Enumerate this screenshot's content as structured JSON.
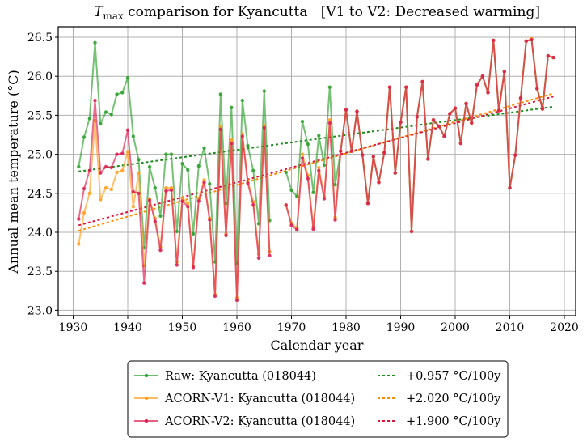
{
  "chart_data": {
    "type": "line",
    "title": "T_max comparison for Kyancutta   [V1 to V2: Decreased warming]",
    "title_parts": {
      "var": "T",
      "sub": "max",
      "rest": " comparison for Kyancutta   [V1 to V2: Decreased warming]"
    },
    "xlabel": "Calendar year",
    "ylabel": "Annual mean temperature (°C)",
    "xlim": [
      1927,
      2022
    ],
    "ylim": [
      22.97,
      26.65
    ],
    "xticks": [
      1930,
      1940,
      1950,
      1960,
      1970,
      1980,
      1990,
      2000,
      2010,
      2020
    ],
    "yticks": [
      23.0,
      23.5,
      24.0,
      24.5,
      25.0,
      25.5,
      26.0,
      26.5
    ],
    "ytick_labels": [
      "23.0",
      "23.5",
      "24.0",
      "24.5",
      "25.0",
      "25.5",
      "26.0",
      "26.5"
    ],
    "grid": true,
    "legend_position": "below-center",
    "series": [
      {
        "name": "Raw: Kyancutta (018044)",
        "color": "#2ca02c",
        "points": [
          [
            1931,
            24.84
          ],
          [
            1932,
            25.22
          ],
          [
            1933,
            25.46
          ],
          [
            1934,
            26.43
          ],
          [
            1935,
            25.39
          ],
          [
            1936,
            25.54
          ],
          [
            1937,
            25.51
          ],
          [
            1938,
            25.77
          ],
          [
            1939,
            25.79
          ],
          [
            1940,
            25.98
          ],
          [
            1941,
            25.23
          ],
          [
            1942,
            24.93
          ],
          [
            1943,
            23.8
          ],
          [
            1944,
            24.84
          ],
          [
            1945,
            24.57
          ],
          [
            1946,
            24.21
          ],
          [
            1947,
            25.0
          ],
          [
            1948,
            25.0
          ],
          [
            1949,
            24.01
          ],
          [
            1950,
            24.88
          ],
          [
            1951,
            24.8
          ],
          [
            1952,
            23.98
          ],
          [
            1953,
            24.85
          ],
          [
            1954,
            25.08
          ],
          [
            1955,
            24.62
          ],
          [
            1956,
            23.62
          ],
          [
            1957,
            25.77
          ],
          [
            1958,
            24.37
          ],
          [
            1959,
            25.6
          ],
          [
            1960,
            23.6
          ],
          [
            1961,
            25.69
          ],
          [
            1962,
            25.11
          ],
          [
            1963,
            24.79
          ],
          [
            1964,
            24.11
          ],
          [
            1965,
            25.81
          ],
          [
            1966,
            24.15
          ],
          null,
          [
            1969,
            24.77
          ],
          [
            1970,
            24.54
          ],
          [
            1971,
            24.46
          ],
          [
            1972,
            25.42
          ],
          [
            1973,
            25.13
          ],
          [
            1974,
            24.51
          ],
          [
            1975,
            25.24
          ],
          [
            1976,
            24.86
          ],
          [
            1977,
            25.86
          ],
          [
            1978,
            24.61
          ],
          [
            1979,
            25.04
          ],
          [
            1980,
            25.57
          ],
          [
            1981,
            25.04
          ],
          [
            1982,
            25.55
          ],
          [
            1983,
            24.99
          ],
          [
            1984,
            24.37
          ],
          [
            1985,
            24.97
          ],
          [
            1986,
            24.64
          ],
          [
            1987,
            25.02
          ],
          [
            1988,
            25.86
          ],
          [
            1989,
            24.76
          ],
          [
            1990,
            25.41
          ],
          [
            1991,
            25.86
          ],
          [
            1992,
            24.01
          ],
          [
            1993,
            25.48
          ],
          [
            1994,
            25.93
          ],
          [
            1995,
            24.94
          ],
          [
            1996,
            25.44
          ],
          [
            1997,
            25.36
          ],
          [
            1998,
            25.23
          ],
          [
            1999,
            25.52
          ],
          [
            2000,
            25.59
          ],
          [
            2001,
            25.14
          ],
          [
            2002,
            25.65
          ],
          [
            2003,
            25.4
          ],
          [
            2004,
            25.89
          ],
          [
            2005,
            26.0
          ],
          [
            2006,
            25.79
          ],
          [
            2007,
            26.46
          ],
          [
            2008,
            25.56
          ],
          [
            2009,
            26.06
          ],
          [
            2010,
            24.57
          ],
          [
            2011,
            24.99
          ],
          [
            2012,
            25.72
          ],
          [
            2013,
            26.45
          ],
          [
            2014,
            26.47
          ],
          [
            2015,
            25.84
          ],
          [
            2016,
            25.6
          ],
          [
            2017,
            26.26
          ],
          [
            2018,
            26.24
          ]
        ]
      },
      {
        "name": "ACORN-V1: Kyancutta (018044)",
        "color": "#ff9d1f",
        "points": [
          [
            1931,
            23.85
          ],
          [
            1932,
            24.25
          ],
          [
            1933,
            24.5
          ],
          [
            1934,
            25.43
          ],
          [
            1935,
            24.42
          ],
          [
            1936,
            24.57
          ],
          [
            1937,
            24.55
          ],
          [
            1938,
            24.77
          ],
          [
            1939,
            24.79
          ],
          [
            1940,
            25.03
          ],
          [
            1941,
            24.33
          ],
          [
            1942,
            24.76
          ],
          [
            1943,
            23.57
          ],
          [
            1944,
            24.43
          ],
          [
            1945,
            24.18
          ],
          [
            1946,
            23.81
          ],
          [
            1947,
            24.57
          ],
          [
            1948,
            24.57
          ],
          [
            1949,
            23.62
          ],
          [
            1950,
            24.44
          ],
          [
            1951,
            24.37
          ],
          [
            1952,
            23.57
          ],
          [
            1953,
            24.43
          ],
          [
            1954,
            24.67
          ],
          [
            1955,
            24.18
          ],
          [
            1956,
            23.2
          ],
          [
            1957,
            25.36
          ],
          [
            1958,
            23.98
          ],
          [
            1959,
            25.18
          ],
          [
            1960,
            23.16
          ],
          [
            1961,
            25.26
          ],
          [
            1962,
            24.66
          ],
          [
            1963,
            24.39
          ],
          [
            1964,
            23.72
          ],
          [
            1965,
            25.37
          ],
          [
            1966,
            23.75
          ],
          null,
          [
            1969,
            24.35
          ],
          [
            1970,
            24.12
          ],
          [
            1971,
            24.05
          ],
          [
            1972,
            25.0
          ],
          [
            1973,
            24.73
          ],
          [
            1974,
            24.07
          ],
          [
            1975,
            24.83
          ],
          [
            1976,
            24.46
          ],
          [
            1977,
            25.44
          ],
          [
            1978,
            24.19
          ],
          [
            1979,
            25.04
          ],
          [
            1980,
            25.57
          ],
          [
            1981,
            25.04
          ],
          [
            1982,
            25.55
          ],
          [
            1983,
            24.99
          ],
          [
            1984,
            24.37
          ],
          [
            1985,
            24.97
          ],
          [
            1986,
            24.64
          ],
          [
            1987,
            25.02
          ],
          [
            1988,
            25.86
          ],
          [
            1989,
            24.76
          ],
          [
            1990,
            25.41
          ],
          [
            1991,
            25.86
          ],
          [
            1992,
            24.01
          ],
          [
            1993,
            25.48
          ],
          [
            1994,
            25.93
          ],
          [
            1995,
            24.94
          ],
          [
            1996,
            25.44
          ],
          [
            1997,
            25.36
          ],
          [
            1998,
            25.23
          ],
          [
            1999,
            25.52
          ],
          [
            2000,
            25.59
          ],
          [
            2001,
            25.14
          ],
          [
            2002,
            25.65
          ],
          [
            2003,
            25.4
          ],
          [
            2004,
            25.89
          ],
          [
            2005,
            26.0
          ],
          [
            2006,
            25.79
          ],
          [
            2007,
            26.46
          ],
          [
            2008,
            25.56
          ],
          [
            2009,
            26.06
          ],
          [
            2010,
            24.57
          ],
          [
            2011,
            24.99
          ],
          [
            2012,
            25.72
          ],
          [
            2013,
            26.45
          ],
          [
            2014,
            26.48
          ],
          [
            2015,
            25.84
          ],
          [
            2016,
            25.58
          ],
          [
            2017,
            26.26
          ],
          [
            2018,
            26.24
          ]
        ]
      },
      {
        "name": "ACORN-V2: Kyancutta (018044)",
        "color": "#dc1f50",
        "points": [
          [
            1931,
            24.17
          ],
          [
            1932,
            24.56
          ],
          [
            1933,
            24.79
          ],
          [
            1934,
            25.69
          ],
          [
            1935,
            24.76
          ],
          [
            1936,
            24.84
          ],
          [
            1937,
            24.83
          ],
          [
            1938,
            25.0
          ],
          [
            1939,
            25.01
          ],
          [
            1940,
            25.31
          ],
          [
            1941,
            24.52
          ],
          [
            1942,
            24.5
          ],
          [
            1943,
            23.35
          ],
          [
            1944,
            24.41
          ],
          [
            1945,
            24.14
          ],
          [
            1946,
            23.77
          ],
          [
            1947,
            24.53
          ],
          [
            1948,
            24.54
          ],
          [
            1949,
            23.58
          ],
          [
            1950,
            24.4
          ],
          [
            1951,
            24.33
          ],
          [
            1952,
            23.55
          ],
          [
            1953,
            24.4
          ],
          [
            1954,
            24.64
          ],
          [
            1955,
            24.16
          ],
          [
            1956,
            23.18
          ],
          [
            1957,
            25.32
          ],
          [
            1958,
            23.96
          ],
          [
            1959,
            25.14
          ],
          [
            1960,
            23.13
          ],
          [
            1961,
            25.23
          ],
          [
            1962,
            24.63
          ],
          [
            1963,
            24.35
          ],
          [
            1964,
            23.67
          ],
          [
            1965,
            25.34
          ],
          [
            1966,
            23.7
          ],
          null,
          [
            1969,
            24.35
          ],
          [
            1970,
            24.09
          ],
          [
            1971,
            24.03
          ],
          [
            1972,
            24.95
          ],
          [
            1973,
            24.69
          ],
          [
            1974,
            24.04
          ],
          [
            1975,
            24.79
          ],
          [
            1976,
            24.43
          ],
          [
            1977,
            25.4
          ],
          [
            1978,
            24.16
          ],
          [
            1979,
            25.04
          ],
          [
            1980,
            25.57
          ],
          [
            1981,
            25.04
          ],
          [
            1982,
            25.55
          ],
          [
            1983,
            24.99
          ],
          [
            1984,
            24.37
          ],
          [
            1985,
            24.97
          ],
          [
            1986,
            24.64
          ],
          [
            1987,
            25.02
          ],
          [
            1988,
            25.86
          ],
          [
            1989,
            24.76
          ],
          [
            1990,
            25.41
          ],
          [
            1991,
            25.86
          ],
          [
            1992,
            24.01
          ],
          [
            1993,
            25.48
          ],
          [
            1994,
            25.93
          ],
          [
            1995,
            24.94
          ],
          [
            1996,
            25.44
          ],
          [
            1997,
            25.36
          ],
          [
            1998,
            25.23
          ],
          [
            1999,
            25.52
          ],
          [
            2000,
            25.59
          ],
          [
            2001,
            25.14
          ],
          [
            2002,
            25.65
          ],
          [
            2003,
            25.4
          ],
          [
            2004,
            25.89
          ],
          [
            2005,
            26.0
          ],
          [
            2006,
            25.79
          ],
          [
            2007,
            26.46
          ],
          [
            2008,
            25.56
          ],
          [
            2009,
            26.06
          ],
          [
            2010,
            24.57
          ],
          [
            2011,
            24.99
          ],
          [
            2012,
            25.72
          ],
          [
            2013,
            26.45
          ],
          [
            2014,
            26.47
          ],
          [
            2015,
            25.84
          ],
          [
            2016,
            25.58
          ],
          [
            2017,
            26.26
          ],
          [
            2018,
            26.24
          ]
        ]
      }
    ],
    "trends": [
      {
        "name": "+0.957 °C/100y",
        "color": "#1a8c1a",
        "x": [
          1931,
          2018
        ],
        "y": [
          24.78,
          25.61
        ]
      },
      {
        "name": "+2.020 °C/100y",
        "color": "#ff8c00",
        "x": [
          1931,
          2018
        ],
        "y": [
          24.02,
          25.78
        ]
      },
      {
        "name": "+1.900 °C/100y",
        "color": "#dc143c",
        "x": [
          1931,
          2018
        ],
        "y": [
          24.09,
          25.74
        ]
      }
    ]
  }
}
